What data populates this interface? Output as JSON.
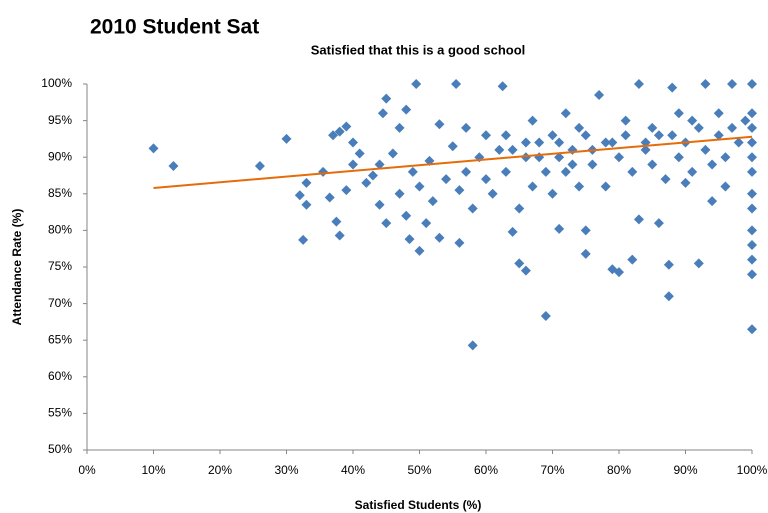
{
  "chart_data": {
    "type": "scatter",
    "title": "2010 Student Sat",
    "subtitle": "Satisfied that this is a good school",
    "x_label": "Satisfied Students (%)",
    "y_label": "Attendance Rate (%)",
    "xlim": [
      0,
      100
    ],
    "ylim": [
      50,
      100
    ],
    "xticks": [
      {
        "value": 0,
        "label": "0%"
      },
      {
        "value": 10,
        "label": "10%"
      },
      {
        "value": 20,
        "label": "20%"
      },
      {
        "value": 30,
        "label": "30%"
      },
      {
        "value": 40,
        "label": "40%"
      },
      {
        "value": 50,
        "label": "50%"
      },
      {
        "value": 60,
        "label": "60%"
      },
      {
        "value": 70,
        "label": "70%"
      },
      {
        "value": 80,
        "label": "80%"
      },
      {
        "value": 90,
        "label": "90%"
      },
      {
        "value": 100,
        "label": "100%"
      }
    ],
    "yticks": [
      {
        "value": 50,
        "label": "50%"
      },
      {
        "value": 55,
        "label": "55%"
      },
      {
        "value": 60,
        "label": "60%"
      },
      {
        "value": 65,
        "label": "65%"
      },
      {
        "value": 70,
        "label": "70%"
      },
      {
        "value": 75,
        "label": "75%"
      },
      {
        "value": 80,
        "label": "80%"
      },
      {
        "value": 85,
        "label": "85%"
      },
      {
        "value": 90,
        "label": "90%"
      },
      {
        "value": 95,
        "label": "95%"
      },
      {
        "value": 100,
        "label": "100%"
      }
    ],
    "grid": false,
    "series": [
      {
        "color": "#4a7ebb",
        "x": [
          10,
          13,
          26,
          30,
          32,
          32.5,
          33,
          33,
          35.5,
          36.5,
          37,
          37.5,
          38,
          38,
          39,
          39,
          40,
          40,
          41,
          42,
          43,
          44,
          44,
          44.5,
          45,
          45,
          46,
          47,
          47,
          48,
          48,
          48.5,
          49,
          49.5,
          50,
          50,
          51,
          51.5,
          52,
          53,
          53,
          54,
          55,
          55.5,
          56,
          56,
          57,
          57,
          58,
          58,
          59,
          60,
          60,
          61,
          62,
          62.5,
          63,
          64,
          65,
          65,
          66,
          66,
          67,
          67,
          68,
          69,
          70,
          70,
          71,
          71,
          72,
          72,
          73,
          74,
          75,
          75,
          75,
          76,
          77,
          78,
          78,
          79,
          80,
          80,
          81,
          82,
          82,
          83,
          83,
          84,
          85,
          85,
          86,
          87,
          87.5,
          87.5,
          88,
          88,
          89,
          90,
          90,
          91,
          92,
          92,
          93,
          93,
          94,
          95,
          95,
          96,
          97,
          97,
          98,
          99,
          100,
          100,
          100,
          100,
          100,
          100,
          100,
          100,
          100,
          100,
          100,
          100,
          100,
          96,
          94,
          91,
          89,
          86,
          84,
          81,
          79,
          76,
          74,
          73,
          71,
          69,
          68,
          66,
          64,
          63
        ],
        "y": [
          91.2,
          88.8,
          88.8,
          92.5,
          84.8,
          78.7,
          86.5,
          83.5,
          88,
          84.5,
          93,
          81.2,
          79.3,
          93.5,
          94.2,
          85.5,
          92,
          89,
          90.5,
          86.5,
          87.5,
          89,
          83.5,
          96,
          98,
          81,
          90.5,
          85,
          94,
          96.5,
          82,
          78.8,
          88,
          100,
          77.2,
          86,
          81,
          89.5,
          84,
          79,
          94.5,
          87,
          91.5,
          100,
          78.3,
          85.5,
          94,
          88,
          64.3,
          83,
          90,
          87,
          93,
          85,
          91,
          99.7,
          88,
          79.8,
          75.5,
          83,
          74.5,
          90,
          86,
          95,
          92,
          68.3,
          85,
          93,
          80.2,
          90,
          88,
          96,
          91,
          86,
          76.8,
          80,
          93,
          89,
          98.5,
          92,
          86,
          74.7,
          74.3,
          90,
          95,
          76,
          88,
          100,
          81.5,
          92,
          94,
          89,
          81,
          87,
          71,
          75.3,
          93,
          99.5,
          90,
          86.5,
          92,
          88,
          94,
          75.5,
          100,
          91,
          89,
          93,
          96,
          90,
          100,
          94,
          92,
          95,
          66.5,
          74,
          76,
          78,
          80,
          83,
          85,
          88,
          90,
          92,
          94,
          96,
          100,
          86,
          84,
          95,
          96,
          93,
          91,
          93,
          92,
          91,
          94,
          89,
          92,
          88,
          90,
          92,
          91,
          93
        ]
      }
    ],
    "trendline": {
      "color": "#e46c0a",
      "x": [
        10,
        100
      ],
      "y": [
        85.8,
        92.8
      ]
    }
  }
}
